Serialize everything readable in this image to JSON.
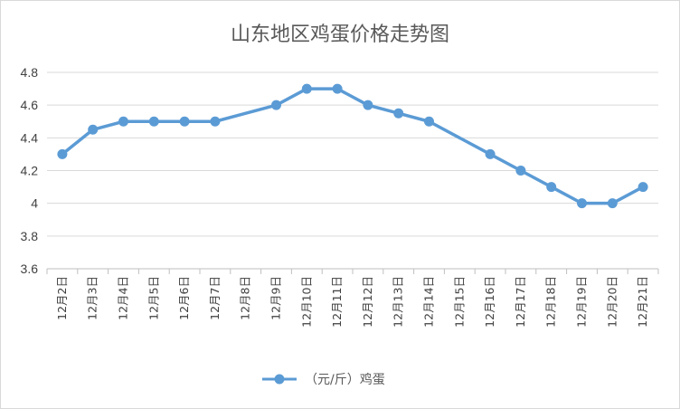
{
  "chart_data": {
    "type": "line",
    "title": "山东地区鸡蛋价格走势图",
    "categories": [
      "12月2日",
      "12月3日",
      "12月4日",
      "12月5日",
      "12月6日",
      "12月7日",
      "12月8日",
      "12月9日",
      "12月10日",
      "12月11日",
      "12月12日",
      "12月13日",
      "12月14日",
      "12月15日",
      "12月16日",
      "12月17日",
      "12月18日",
      "12月19日",
      "12月20日",
      "12月21日"
    ],
    "series": [
      {
        "name": "（元/斤）鸡蛋",
        "values": [
          4.3,
          4.45,
          4.5,
          4.5,
          4.5,
          4.5,
          null,
          4.6,
          4.7,
          4.7,
          4.6,
          4.55,
          4.5,
          null,
          4.3,
          4.2,
          4.1,
          4.0,
          4.0,
          4.1
        ],
        "color": "#5B9BD5"
      }
    ],
    "ylim": [
      3.6,
      4.8
    ],
    "yticks": [
      "3.6",
      "3.8",
      "4",
      "4.2",
      "4.4",
      "4.6",
      "4.8"
    ],
    "grid": true,
    "legend_position": "bottom",
    "xlabel": "",
    "ylabel": ""
  }
}
